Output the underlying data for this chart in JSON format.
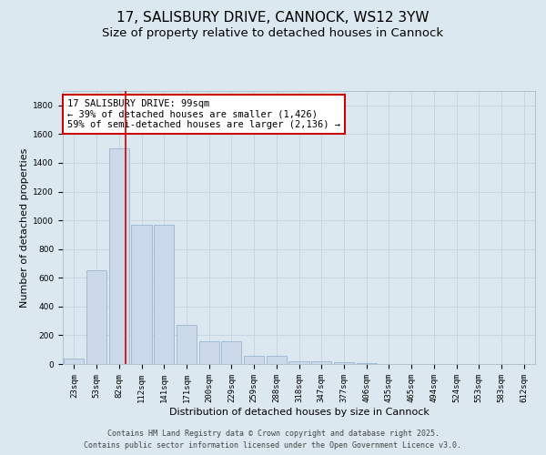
{
  "title_line1": "17, SALISBURY DRIVE, CANNOCK, WS12 3YW",
  "title_line2": "Size of property relative to detached houses in Cannock",
  "xlabel": "Distribution of detached houses by size in Cannock",
  "ylabel": "Number of detached properties",
  "bins": [
    "23sqm",
    "53sqm",
    "82sqm",
    "112sqm",
    "141sqm",
    "171sqm",
    "200sqm",
    "229sqm",
    "259sqm",
    "288sqm",
    "318sqm",
    "347sqm",
    "377sqm",
    "406sqm",
    "435sqm",
    "465sqm",
    "494sqm",
    "524sqm",
    "553sqm",
    "583sqm",
    "612sqm"
  ],
  "values": [
    40,
    650,
    1500,
    970,
    970,
    270,
    160,
    160,
    60,
    60,
    20,
    20,
    10,
    5,
    0,
    0,
    0,
    0,
    0,
    0,
    0
  ],
  "bar_color": "#ccd9ea",
  "bar_edge_color": "#9ab5d0",
  "bar_edge_width": 0.6,
  "annotation_text": "17 SALISBURY DRIVE: 99sqm\n← 39% of detached houses are smaller (1,426)\n59% of semi-detached houses are larger (2,136) →",
  "annotation_box_color": "#ffffff",
  "annotation_box_edge_color": "#cc0000",
  "ylim": [
    0,
    1900
  ],
  "yticks": [
    0,
    200,
    400,
    600,
    800,
    1000,
    1200,
    1400,
    1600,
    1800
  ],
  "grid_color": "#c8d4e0",
  "bg_color": "#dce8f0",
  "plot_bg_color": "#dce8f0",
  "property_line_color": "#cc0000",
  "property_line_x": 2.3,
  "title_fontsize": 11,
  "subtitle_fontsize": 9.5,
  "axis_label_fontsize": 8,
  "tick_fontsize": 6.5,
  "annotation_fontsize": 7.5,
  "footer_fontsize": 6,
  "footer_line1": "Contains HM Land Registry data © Crown copyright and database right 2025.",
  "footer_line2": "Contains public sector information licensed under the Open Government Licence v3.0."
}
